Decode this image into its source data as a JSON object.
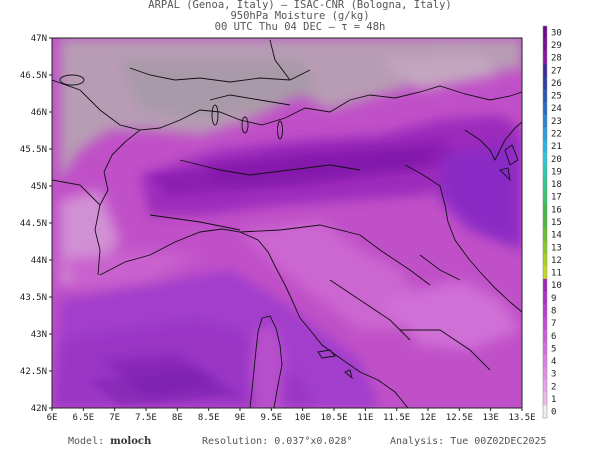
{
  "header": {
    "line1": "ARPAL (Genoa, Italy)  —  ISAC-CNR (Bologna, Italy)",
    "line2": "950hPa Moisture (g/kg)",
    "line3": "00 UTC Thu 04 DEC  —  τ = 48h"
  },
  "map": {
    "lat_ticks": [
      "47N",
      "46.5N",
      "46N",
      "45.5N",
      "45N",
      "44.5N",
      "44N",
      "43.5N",
      "43N",
      "42.5N",
      "42N"
    ],
    "lon_ticks": [
      "6E",
      "6.5E",
      "7E",
      "7.5E",
      "8E",
      "8.5E",
      "9E",
      "9.5E",
      "10E",
      "10.5E",
      "11E",
      "11.5E",
      "12E",
      "12.5E",
      "13E",
      "13.5E"
    ],
    "lat_range": [
      42,
      47
    ],
    "lon_range": [
      6,
      13.5
    ]
  },
  "colorbar": {
    "values": [
      "30",
      "29",
      "28",
      "27",
      "26",
      "25",
      "24",
      "23",
      "22",
      "21",
      "20",
      "19",
      "18",
      "17",
      "16",
      "15",
      "14",
      "13",
      "12",
      "11",
      "10",
      "9",
      "8",
      "7",
      "6",
      "5",
      "4",
      "3",
      "2",
      "1",
      "0"
    ],
    "colors": [
      "#6e0a8a",
      "#7a0f96",
      "#8a14a8",
      "#3a2a9a",
      "#2e3ea8",
      "#2a54b8",
      "#2a6ac8",
      "#2a84d4",
      "#2a9ce0",
      "#2ab4e6",
      "#2ec6d8",
      "#30c8b0",
      "#30c890",
      "#38c66c",
      "#40b850",
      "#4cb83c",
      "#68c030",
      "#8ac828",
      "#aad020",
      "#c8d820",
      "#9e24c0",
      "#aa30cc",
      "#b63cd4",
      "#c24ad8",
      "#cc5cdc",
      "#d46ce0",
      "#dc7ee4",
      "#e290e6",
      "#e6a6e8",
      "#eabcea",
      "#efefef"
    ]
  },
  "footer": {
    "model_label": "Model:",
    "model_name": "moloch",
    "resolution": "Resolution: 0.037°x0.028°",
    "analysis": "Analysis: Tue 00Z02DEC2025"
  }
}
